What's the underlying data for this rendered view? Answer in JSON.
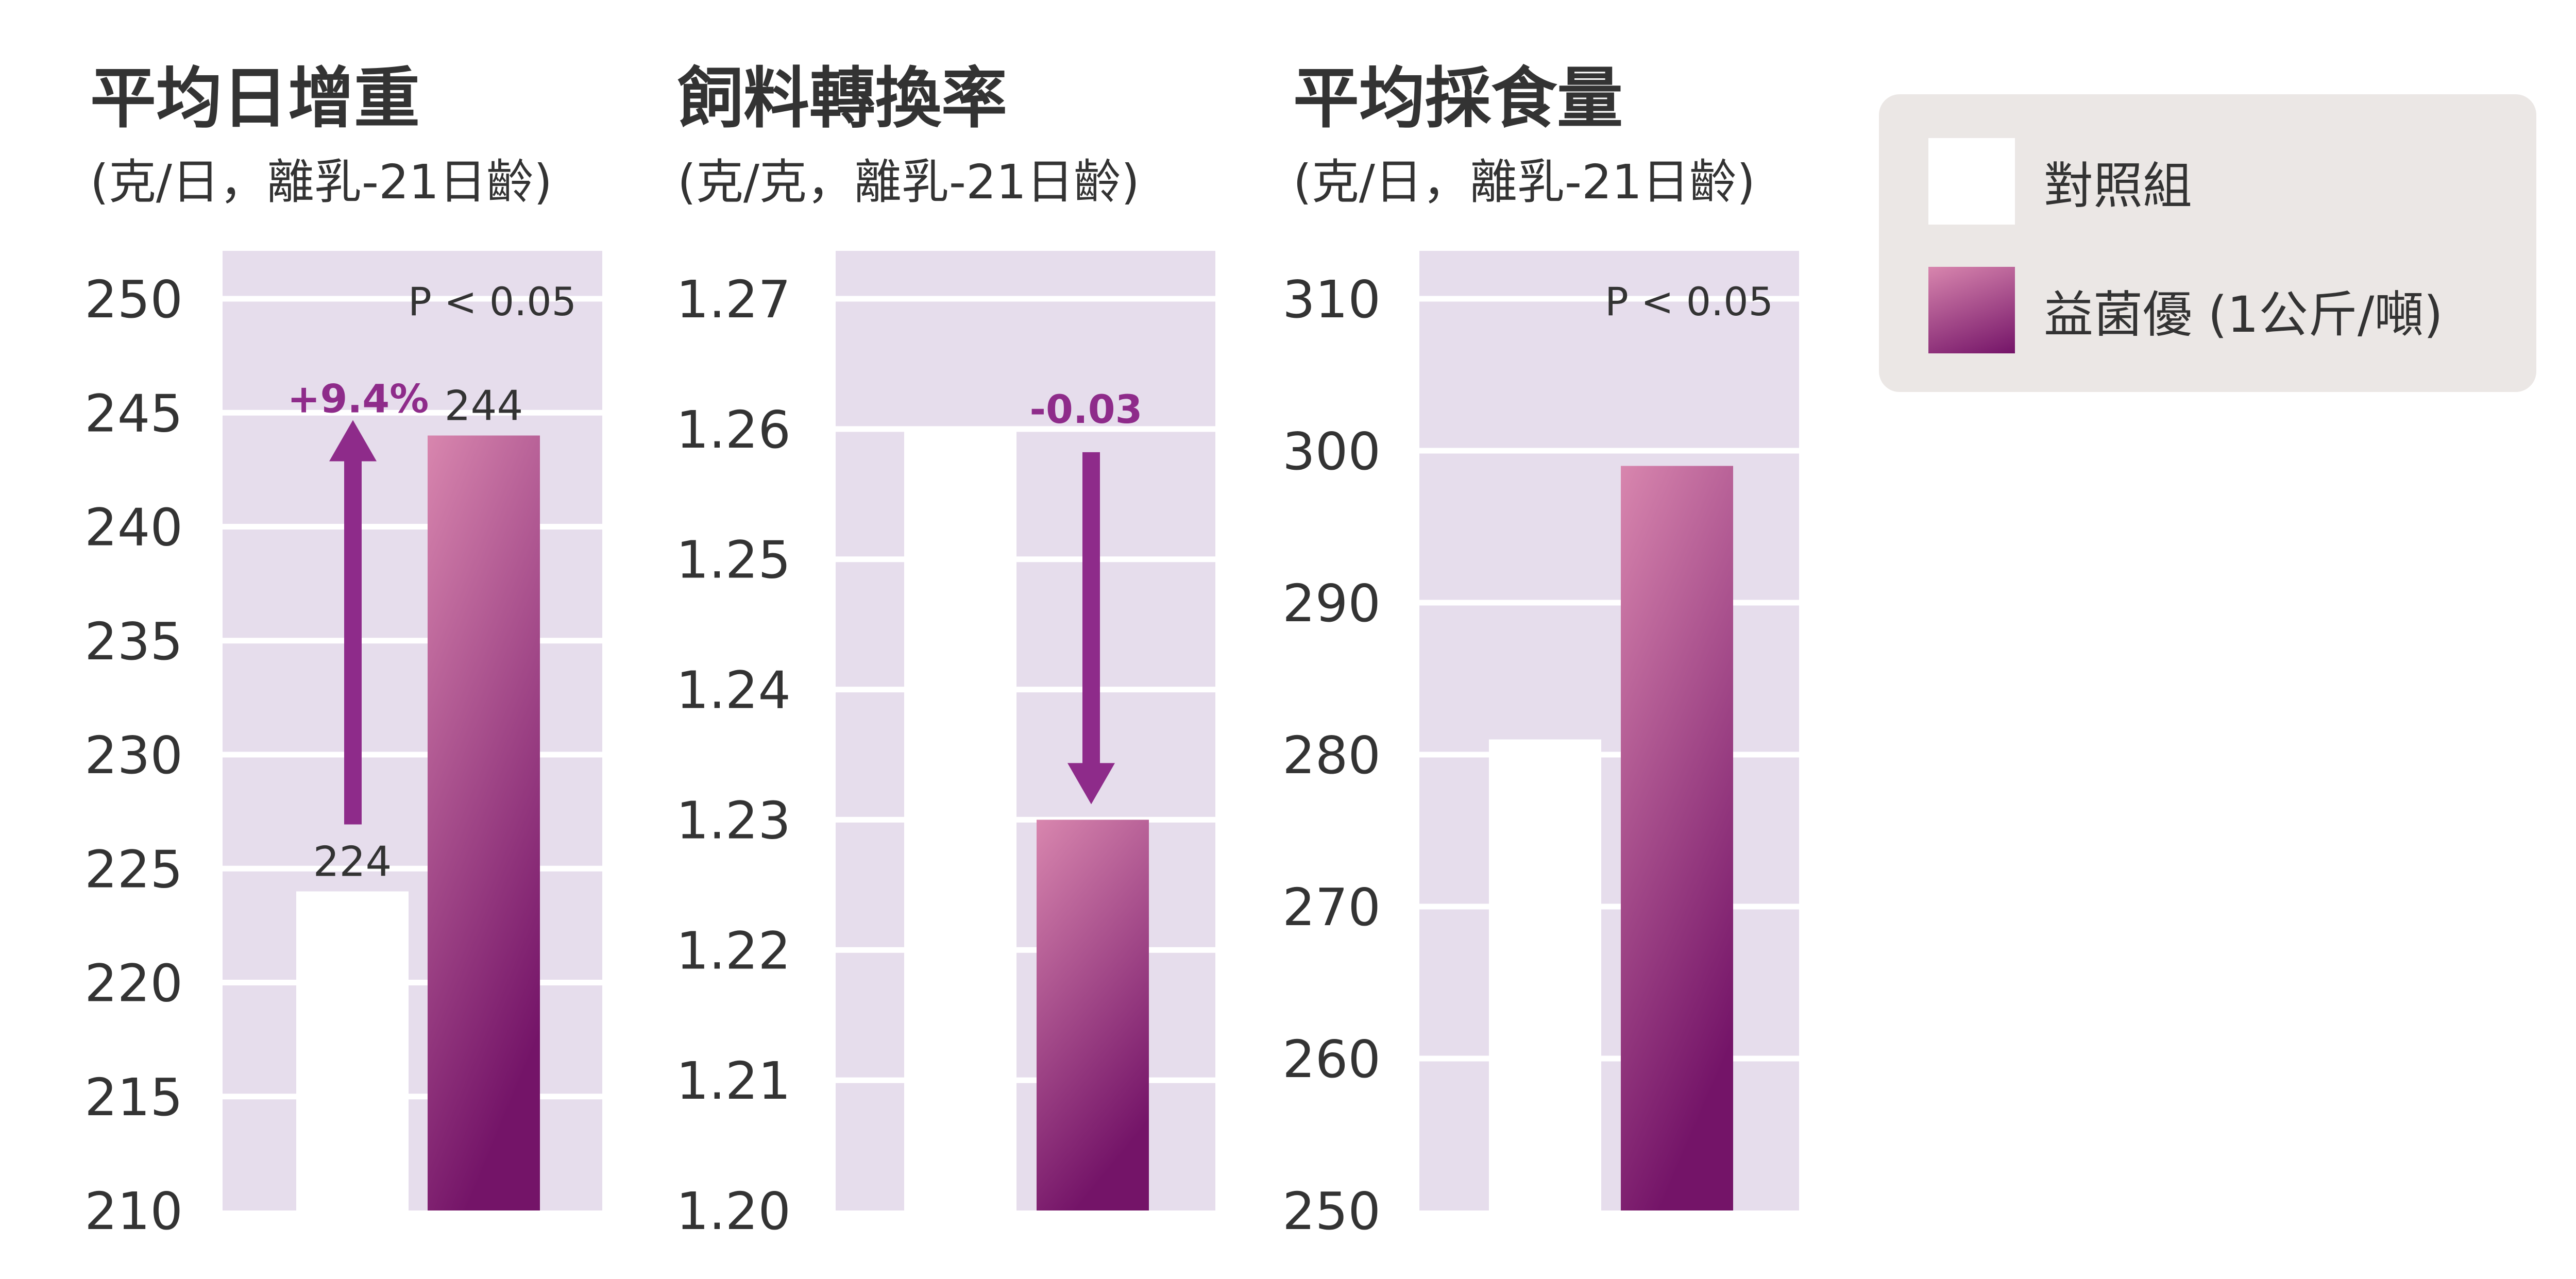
{
  "legend": {
    "control_label": "對照組",
    "treatment_label": "益菌優 (1公斤/噸)"
  },
  "colors": {
    "panel_background": "#e6ddec",
    "control_bar": "#ffffff",
    "treatment_top": "#d886ae",
    "treatment_bottom": "#741468",
    "accent": "#8e2b8a",
    "text": "#333333",
    "legend_background": "#ebe7e5"
  },
  "chart_data": [
    {
      "type": "bar",
      "title": "平均日增重",
      "subtitle": "(克/日，離乳-21日齡)",
      "categories": [
        "對照組",
        "益菌優 (1公斤/噸)"
      ],
      "values": [
        224,
        244
      ],
      "ylim": [
        210,
        250
      ],
      "yticks": [
        "210",
        "215",
        "220",
        "225",
        "230",
        "235",
        "240",
        "245",
        "250"
      ],
      "grid": true,
      "annotations": {
        "p_value": "P < 0.05",
        "change": "+9.4%",
        "arrow": "up"
      },
      "data_labels": [
        "224",
        "244"
      ]
    },
    {
      "type": "bar",
      "title": "飼料轉換率",
      "subtitle": "(克/克，離乳-21日齡)",
      "categories": [
        "對照組",
        "益菌優 (1公斤/噸)"
      ],
      "values": [
        1.26,
        1.23
      ],
      "ylim": [
        1.2,
        1.27
      ],
      "yticks": [
        "1.20",
        "1.21",
        "1.22",
        "1.23",
        "1.24",
        "1.25",
        "1.26",
        "1.27"
      ],
      "grid": true,
      "annotations": {
        "change": "-0.03",
        "arrow": "down"
      }
    },
    {
      "type": "bar",
      "title": "平均採食量",
      "subtitle": "(克/日，離乳-21日齡)",
      "categories": [
        "對照組",
        "益菌優 (1公斤/噸)"
      ],
      "values": [
        281,
        299
      ],
      "ylim": [
        250,
        310
      ],
      "yticks": [
        "250",
        "260",
        "270",
        "280",
        "290",
        "300",
        "310"
      ],
      "grid": true,
      "annotations": {
        "p_value": "P < 0.05"
      }
    }
  ]
}
